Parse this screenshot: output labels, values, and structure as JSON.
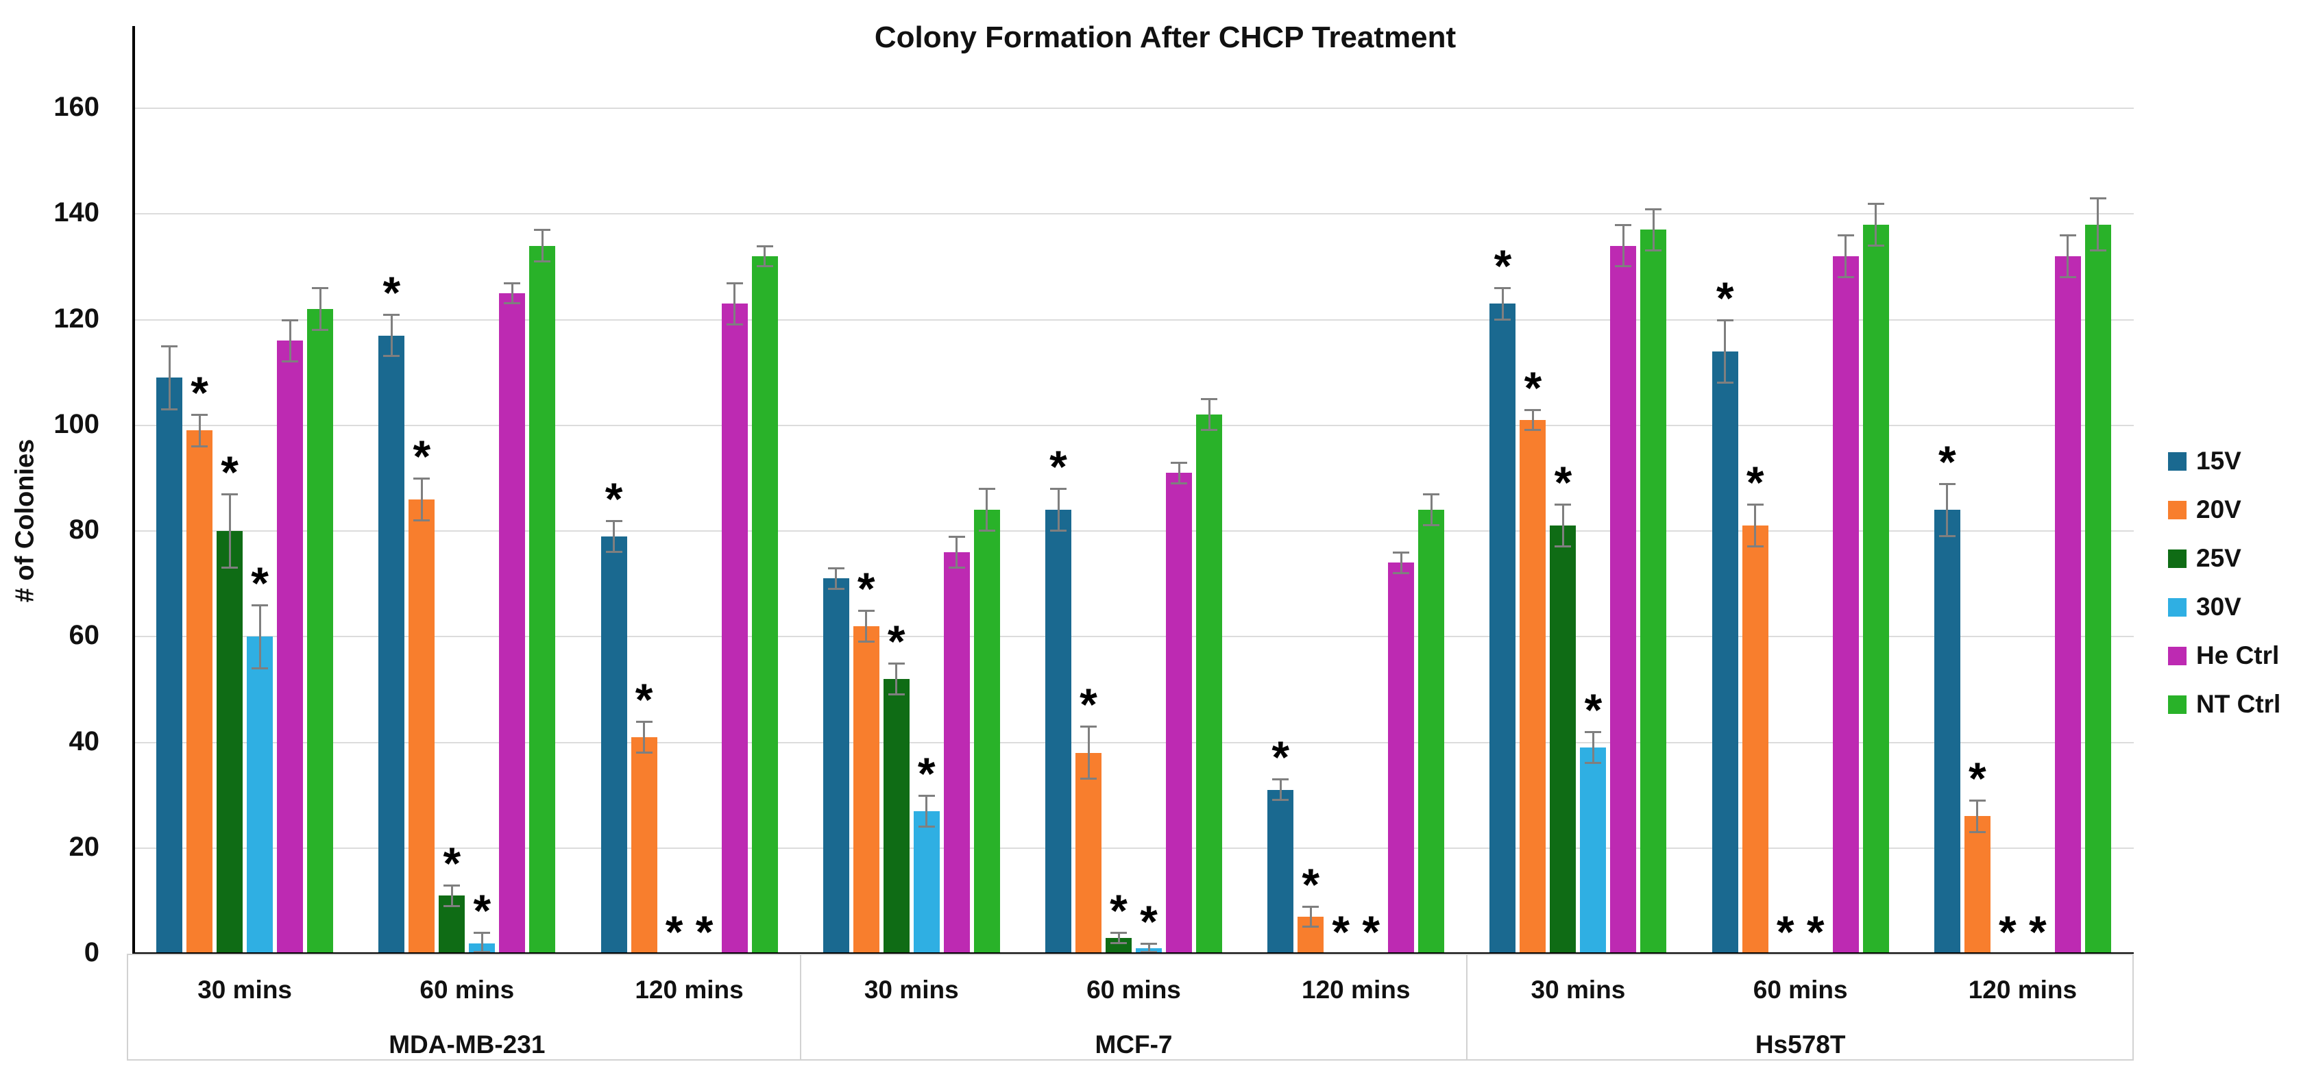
{
  "title": "Colony Formation After CHCP Treatment",
  "chart_data": {
    "type": "bar",
    "title": "Colony Formation After CHCP Treatment",
    "xlabel": "",
    "ylabel": "# of Colonies",
    "ylim": [
      0,
      170
    ],
    "y_ticks": [
      0,
      20,
      40,
      60,
      80,
      100,
      120,
      140,
      160
    ],
    "grid": true,
    "legend_position": "right",
    "significance_marker": "*",
    "error_bar_color": "#7f7f7f",
    "series": [
      {
        "name": "15V",
        "color": "#1A6990"
      },
      {
        "name": "20V",
        "color": "#F87E2D"
      },
      {
        "name": "25V",
        "color": "#0F6C15"
      },
      {
        "name": "30V",
        "color": "#2FAFE3"
      },
      {
        "name": "He Ctrl",
        "color": "#BD2AB2"
      },
      {
        "name": "NT Ctrl",
        "color": "#29B229"
      }
    ],
    "time_labels": [
      "30 mins",
      "60 mins",
      "120 mins"
    ],
    "sections": [
      {
        "label": "MDA-MB-231",
        "groups": [
          {
            "label": "30 mins",
            "values": [
              109,
              99,
              80,
              60,
              116,
              122
            ],
            "errors": [
              6,
              3,
              7,
              6,
              4,
              4
            ],
            "significant": [
              false,
              true,
              true,
              true,
              false,
              false
            ]
          },
          {
            "label": "60 mins",
            "values": [
              117,
              86,
              11,
              2,
              125,
              134
            ],
            "errors": [
              4,
              4,
              2,
              2,
              2,
              3
            ],
            "significant": [
              true,
              true,
              true,
              true,
              false,
              false
            ]
          },
          {
            "label": "120 mins",
            "values": [
              79,
              41,
              0,
              0,
              123,
              132
            ],
            "errors": [
              3,
              3,
              0,
              0,
              4,
              2
            ],
            "significant": [
              true,
              true,
              true,
              true,
              false,
              false
            ]
          }
        ]
      },
      {
        "label": "MCF-7",
        "groups": [
          {
            "label": "30 mins",
            "values": [
              71,
              62,
              52,
              27,
              76,
              84
            ],
            "errors": [
              2,
              3,
              3,
              3,
              3,
              4
            ],
            "significant": [
              false,
              true,
              true,
              true,
              false,
              false
            ]
          },
          {
            "label": "60 mins",
            "values": [
              84,
              38,
              3,
              1,
              91,
              102
            ],
            "errors": [
              4,
              5,
              1,
              1,
              2,
              3
            ],
            "significant": [
              true,
              true,
              true,
              true,
              false,
              false
            ]
          },
          {
            "label": "120 mins",
            "values": [
              31,
              7,
              0,
              0,
              74,
              84
            ],
            "errors": [
              2,
              2,
              0,
              0,
              2,
              3
            ],
            "significant": [
              true,
              true,
              true,
              true,
              false,
              false
            ]
          }
        ]
      },
      {
        "label": "Hs578T",
        "groups": [
          {
            "label": "30 mins",
            "values": [
              123,
              101,
              81,
              39,
              134,
              137
            ],
            "errors": [
              3,
              2,
              4,
              3,
              4,
              4
            ],
            "significant": [
              true,
              true,
              true,
              true,
              false,
              false
            ]
          },
          {
            "label": "60 mins",
            "values": [
              114,
              81,
              0,
              0,
              132,
              138
            ],
            "errors": [
              6,
              4,
              0,
              0,
              4,
              4
            ],
            "significant": [
              true,
              true,
              true,
              true,
              false,
              false
            ]
          },
          {
            "label": "120 mins",
            "values": [
              84,
              26,
              0,
              0,
              132,
              138
            ],
            "errors": [
              5,
              3,
              0,
              0,
              4,
              5
            ],
            "significant": [
              true,
              true,
              true,
              true,
              false,
              false
            ]
          }
        ]
      }
    ]
  }
}
